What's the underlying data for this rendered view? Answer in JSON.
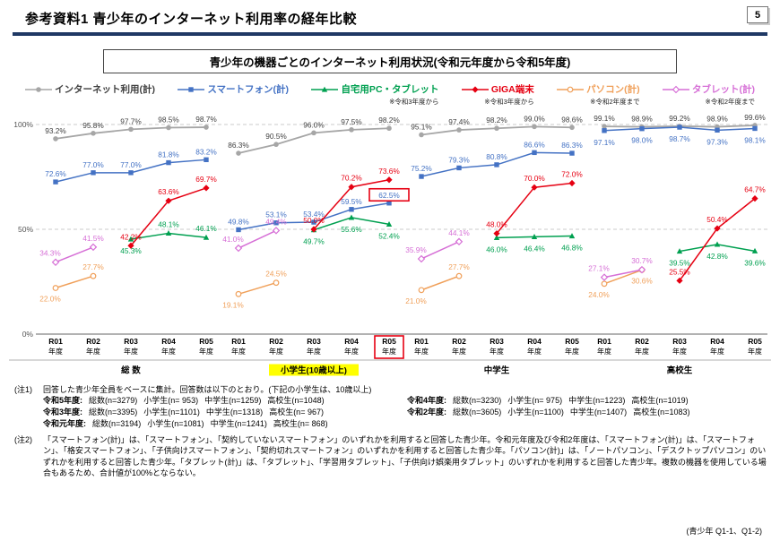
{
  "page": {
    "title": "参考資料1 青少年のインターネット利用率の経年比較",
    "page_number": "5",
    "footer_ref": "(青少年 Q1-1、Q1-2)"
  },
  "chart_box": {
    "subtitle": "青少年の機器ごとのインターネット利用状況(令和元年度から令和5年度)"
  },
  "chart_data": {
    "type": "line",
    "unit": "%",
    "ylim": [
      0,
      100
    ],
    "grid": "dashed-horizontal",
    "legend_position": "top",
    "y_axis": {
      "ticks": [
        {
          "value": 100,
          "label": "100%"
        },
        {
          "value": 50,
          "label": "50%"
        },
        {
          "value": 0,
          "label": "0%"
        }
      ]
    },
    "year_suffix": "年度",
    "panels": [
      {
        "label": "総 数",
        "years": [
          "R01",
          "R02",
          "R03",
          "R04",
          "R05"
        ]
      },
      {
        "label": "小学生(10歳以上)",
        "years": [
          "R01",
          "R02",
          "R03",
          "R04",
          "R05"
        ],
        "label_bg": "#ffff00",
        "highlight_year_index": 4
      },
      {
        "label": "中学生",
        "years": [
          "R01",
          "R02",
          "R03",
          "R04",
          "R05"
        ]
      },
      {
        "label": "高校生",
        "years": [
          "R01",
          "R02",
          "R03",
          "R04",
          "R05"
        ]
      }
    ],
    "series": [
      {
        "name": "インターネット利用(計)",
        "color": "#a6a6a6",
        "label_color": "#404040",
        "marker": "circle",
        "start_note": "",
        "values_by_panel": [
          [
            93.2,
            95.8,
            97.7,
            98.5,
            98.7
          ],
          [
            86.3,
            90.5,
            96.0,
            97.5,
            98.2
          ],
          [
            95.1,
            97.4,
            98.2,
            99.0,
            98.6
          ],
          [
            99.1,
            98.9,
            99.2,
            98.9,
            99.6
          ]
        ]
      },
      {
        "name": "スマートフォン(計)",
        "color": "#4472c4",
        "marker": "square",
        "start_note": "",
        "values_by_panel": [
          [
            72.6,
            77.0,
            77.0,
            81.8,
            83.2
          ],
          [
            49.8,
            53.1,
            53.4,
            59.5,
            62.5
          ],
          [
            75.2,
            79.3,
            80.8,
            86.6,
            86.3
          ],
          [
            97.1,
            98.0,
            98.7,
            97.3,
            98.1
          ]
        ]
      },
      {
        "name": "自宅用PC・タブレット",
        "color": "#00a050",
        "marker": "triangle",
        "start_note": "※令和3年度から",
        "values_by_panel": [
          [
            null,
            null,
            45.3,
            48.1,
            46.1
          ],
          [
            null,
            null,
            49.7,
            55.6,
            52.4
          ],
          [
            null,
            null,
            46.0,
            46.4,
            46.8
          ],
          [
            null,
            null,
            39.5,
            42.8,
            39.6
          ]
        ]
      },
      {
        "name": "GIGA端末",
        "color": "#e60012",
        "marker": "diamond",
        "start_note": "※令和3年度から",
        "values_by_panel": [
          [
            null,
            null,
            42.2,
            63.6,
            69.7
          ],
          [
            null,
            null,
            50.0,
            70.2,
            73.6
          ],
          [
            null,
            null,
            48.0,
            70.0,
            72.0
          ],
          [
            null,
            null,
            25.5,
            50.4,
            64.7
          ]
        ]
      },
      {
        "name": "パソコン(計)",
        "color": "#f0a05a",
        "marker": "circle-open",
        "start_note": "※令和2年度まで",
        "values_by_panel": [
          [
            22.0,
            27.7,
            null,
            null,
            null
          ],
          [
            19.1,
            24.5,
            null,
            null,
            null
          ],
          [
            21.0,
            27.7,
            null,
            null,
            null
          ],
          [
            24.0,
            30.6,
            null,
            null,
            null
          ]
        ]
      },
      {
        "name": "タブレット(計)",
        "color": "#d66fd6",
        "marker": "diamond-open",
        "start_note": "※令和2年度まで",
        "values_by_panel": [
          [
            34.3,
            41.5,
            null,
            null,
            null
          ],
          [
            41.0,
            49.4,
            null,
            null,
            null
          ],
          [
            35.9,
            44.1,
            null,
            null,
            null
          ],
          [
            27.1,
            30.7,
            null,
            null,
            null
          ]
        ]
      }
    ],
    "highlight_label": {
      "panel": 1,
      "series": 1,
      "point": 4
    }
  },
  "notes": {
    "note1_label": "(注1)",
    "note1_text": "回答した青少年全員をベースに集計。回答数は以下のとおり。(下記の小学生は、10歳以上)",
    "counts": [
      {
        "era": "令和5年度:",
        "stats": [
          "総数(n=3279)",
          "小学生(n= 953)",
          "中学生(n=1259)",
          "高校生(n=1048)"
        ]
      },
      {
        "era": "令和4年度:",
        "stats": [
          "総数(n=3230)",
          "小学生(n= 975)",
          "中学生(n=1223)",
          "高校生(n=1019)"
        ]
      },
      {
        "era": "令和3年度:",
        "stats": [
          "総数(n=3395)",
          "小学生(n=1101)",
          "中学生(n=1318)",
          "高校生(n= 967)"
        ]
      },
      {
        "era": "令和2年度:",
        "stats": [
          "総数(n=3605)",
          "小学生(n=1100)",
          "中学生(n=1407)",
          "高校生(n=1083)"
        ]
      },
      {
        "era": "令和元年度:",
        "stats": [
          "総数(n=3194)",
          "小学生(n=1081)",
          "中学生(n=1241)",
          "高校生(n= 868)"
        ]
      }
    ],
    "note2_label": "(注2)",
    "note2_text": "「スマートフォン(計)」は、「スマートフォン」、「契約していないスマートフォン」のいずれかを利用すると回答した青少年。令和元年度及び令和2年度は、「スマートフォン(計)」は、「スマートフォン」、「格安スマートフォン」、「子供向けスマートフォン」、「契約切れスマートフォン」のいずれかを利用すると回答した青少年。「パソコン(計)」は、「ノートパソコン」、「デスクトップパソコン」のいずれかを利用すると回答した青少年。「タブレット(計)」は、「タブレット」、「学習用タブレット」、「子供向け娯楽用タブレット」のいずれかを利用すると回答した青少年。複数の機器を使用している場合もあるため、合計値が100%とならない。"
  }
}
